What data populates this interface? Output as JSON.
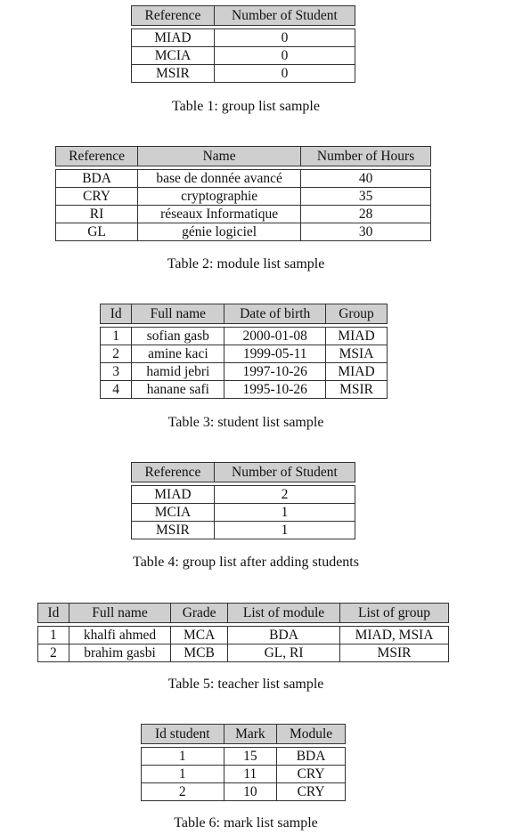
{
  "tables": [
    {
      "headers": [
        "Reference",
        "Number of Student"
      ],
      "rows": [
        [
          "MIAD",
          "0"
        ],
        [
          "MCIA",
          "0"
        ],
        [
          "MSIR",
          "0"
        ]
      ],
      "caption": "Table 1: group list sample"
    },
    {
      "headers": [
        "Reference",
        "Name",
        "Number of Hours"
      ],
      "rows": [
        [
          "BDA",
          "base de donnée avancé",
          "40"
        ],
        [
          "CRY",
          "cryptographie",
          "35"
        ],
        [
          "RI",
          "réseaux Informatique",
          "28"
        ],
        [
          "GL",
          "génie logiciel",
          "30"
        ]
      ],
      "caption": "Table 2: module list sample"
    },
    {
      "headers": [
        "Id",
        "Full name",
        "Date of birth",
        "Group"
      ],
      "rows": [
        [
          "1",
          "sofian gasb",
          "2000-01-08",
          "MIAD"
        ],
        [
          "2",
          "amine kaci",
          "1999-05-11",
          "MSIA"
        ],
        [
          "3",
          "hamid jebri",
          "1997-10-26",
          "MIAD"
        ],
        [
          "4",
          "hanane safi",
          "1995-10-26",
          "MSIR"
        ]
      ],
      "caption": "Table 3: student list sample"
    },
    {
      "headers": [
        "Reference",
        "Number of Student"
      ],
      "rows": [
        [
          "MIAD",
          "2"
        ],
        [
          "MCIA",
          "1"
        ],
        [
          "MSIR",
          "1"
        ]
      ],
      "caption": "Table 4: group list after adding students"
    },
    {
      "headers": [
        "Id",
        "Full name",
        "Grade",
        "List of module",
        "List of group"
      ],
      "rows": [
        [
          "1",
          "khalfi ahmed",
          "MCA",
          "BDA",
          "MIAD, MSIA"
        ],
        [
          "2",
          "brahim gasbi",
          "MCB",
          "GL, RI",
          "MSIR"
        ]
      ],
      "caption": "Table 5: teacher list sample"
    },
    {
      "headers": [
        "Id student",
        "Mark",
        "Module"
      ],
      "rows": [
        [
          "1",
          "15",
          "BDA"
        ],
        [
          "1",
          "11",
          "CRY"
        ],
        [
          "2",
          "10",
          "CRY"
        ]
      ],
      "caption": "Table 6: mark list sample"
    }
  ]
}
